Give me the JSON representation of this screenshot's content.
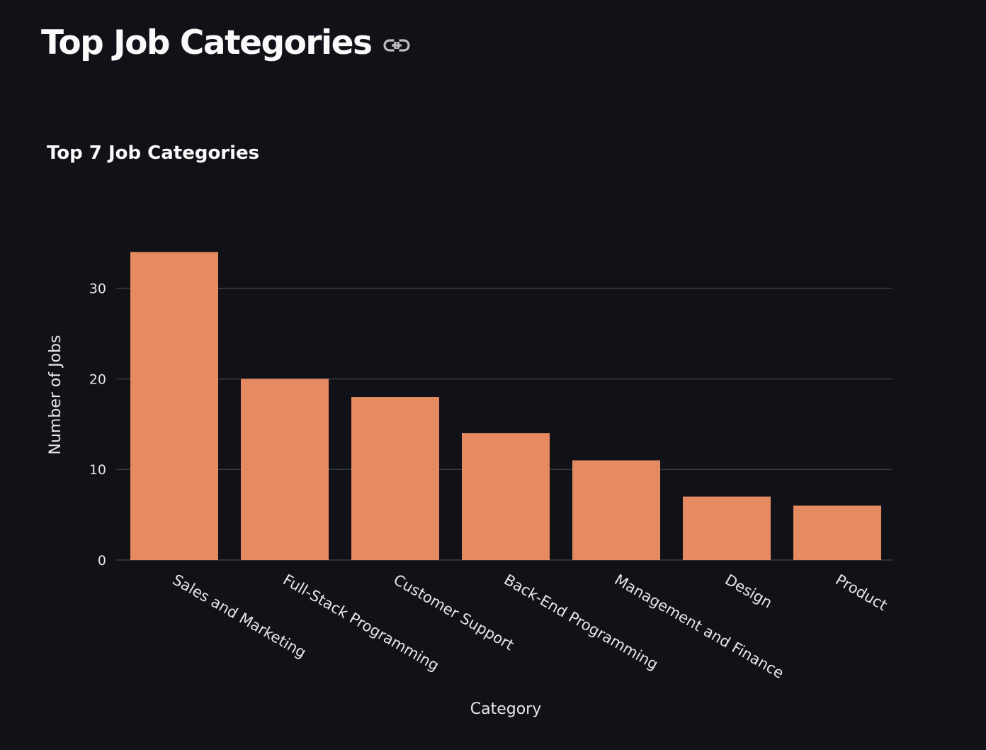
{
  "page": {
    "title": "Top Job Categories",
    "link_icon": "link-icon"
  },
  "chart_data": {
    "type": "bar",
    "title": "Top 7 Job Categories",
    "xlabel": "Category",
    "ylabel": "Number of Jobs",
    "categories": [
      "Sales and Marketing",
      "Full-Stack Programming",
      "Customer Support",
      "Back-End Programming",
      "Management and Finance",
      "Design",
      "Product"
    ],
    "values": [
      34,
      20,
      18,
      14,
      11,
      7,
      6
    ],
    "ylim": [
      0,
      36
    ],
    "yticks": [
      0,
      10,
      20,
      30
    ],
    "grid": true,
    "colors": {
      "bar": "#e68a61",
      "background": "#111217",
      "grid": "#3a3c45",
      "text": "#fafafa",
      "tick_text": "#e6e6e6"
    }
  }
}
